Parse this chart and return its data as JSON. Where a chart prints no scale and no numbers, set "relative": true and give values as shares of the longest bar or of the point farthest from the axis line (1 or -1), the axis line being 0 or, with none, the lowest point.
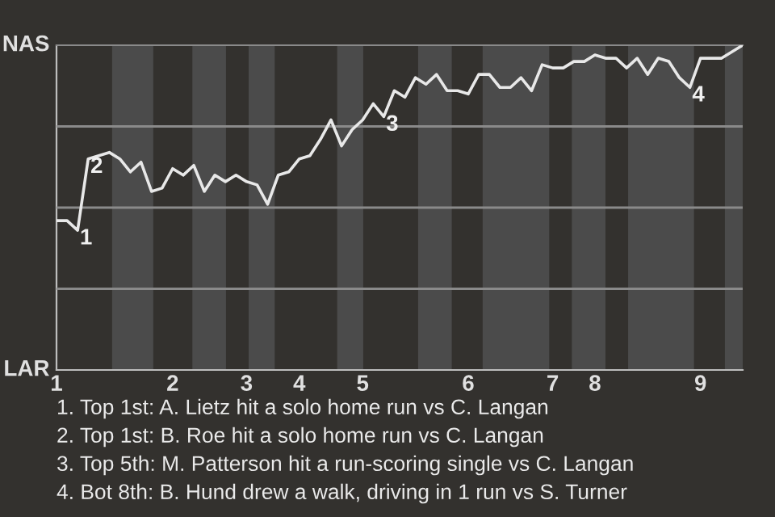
{
  "chart_data": {
    "type": "line",
    "relative": true,
    "categories": [
      "1",
      null,
      null,
      null,
      null,
      null,
      null,
      null,
      null,
      null,
      null,
      "2",
      null,
      null,
      null,
      null,
      null,
      null,
      "3",
      null,
      null,
      null,
      null,
      "4",
      null,
      null,
      null,
      null,
      null,
      "5",
      null,
      null,
      null,
      null,
      null,
      null,
      null,
      null,
      null,
      "6",
      null,
      null,
      null,
      null,
      null,
      null,
      null,
      "7",
      null,
      null,
      null,
      "8",
      null,
      null,
      null,
      null,
      null,
      null,
      null,
      null,
      null,
      "9",
      null,
      null,
      null,
      null
    ],
    "series": [
      {
        "color": "#e8e8e8",
        "values": [
          0.46,
          0.46,
          0.43,
          0.65,
          0.66,
          0.67,
          0.65,
          0.61,
          0.64,
          0.55,
          0.56,
          0.62,
          0.6,
          0.63,
          0.55,
          0.6,
          0.58,
          0.6,
          0.58,
          0.57,
          0.51,
          0.6,
          0.61,
          0.65,
          0.66,
          0.71,
          0.77,
          0.69,
          0.74,
          0.77,
          0.82,
          0.78,
          0.86,
          0.84,
          0.9,
          0.88,
          0.91,
          0.86,
          0.86,
          0.85,
          0.91,
          0.91,
          0.87,
          0.87,
          0.9,
          0.86,
          0.94,
          0.93,
          0.93,
          0.95,
          0.95,
          0.97,
          0.96,
          0.96,
          0.93,
          0.96,
          0.91,
          0.96,
          0.95,
          0.9,
          0.87,
          0.96,
          0.96,
          0.96,
          0.98,
          1.0
        ]
      }
    ],
    "grid": "y",
    "annotations": [
      {
        "text": "1",
        "y": 0.43
      },
      {
        "text": "2",
        "y": 0.65
      },
      {
        "text": "3",
        "y": 0.78
      },
      {
        "text": "4",
        "y": 0.87
      },
      "NAS",
      "LAR",
      "1. Top 1st: A. Lietz hit a solo home run vs C. Langan",
      "2. Top 1st: B. Roe hit a solo home run vs C. Langan",
      "3. Top 5th: M. Patterson hit a run-scoring single vs C. Langan",
      "4. Bot 8th: B. Hund drew a walk, driving in 1 run vs S. Turner"
    ]
  }
}
